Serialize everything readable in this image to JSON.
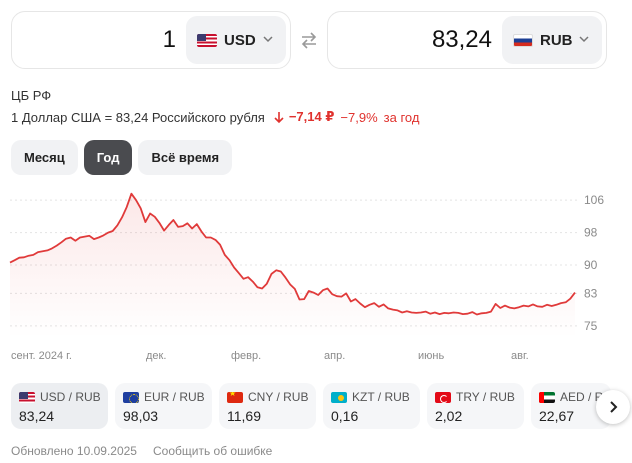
{
  "converter": {
    "from": {
      "amount": "1",
      "currency": "USD",
      "flag": "us-flag-icon"
    },
    "to": {
      "amount": "83,24",
      "currency": "RUB",
      "flag": "ru-flag-icon"
    },
    "swap_icon": "swap-arrows-icon"
  },
  "source": "ЦБ РФ",
  "rate_line": {
    "text": "1 Доллар США = 83,24 Российского рубля",
    "change_abs": "−7,14 ₽",
    "change_pct": "−7,9%",
    "change_period": "за год",
    "change_color": "#e0322e"
  },
  "period_tabs": [
    {
      "label": "Месяц",
      "active": false
    },
    {
      "label": "Год",
      "active": true
    },
    {
      "label": "Всё время",
      "active": false
    }
  ],
  "chart_data": {
    "type": "line",
    "title": "",
    "xlabel": "",
    "ylabel": "",
    "line_color": "#e03a3a",
    "x_tick_labels": [
      "сент. 2024 г.",
      "дек.",
      "февр.",
      "апр.",
      "июнь",
      "авг."
    ],
    "y_ticks": [
      "106",
      "98",
      "90",
      "83",
      "75"
    ],
    "ylim": [
      72,
      109
    ],
    "grid": true,
    "series": [
      {
        "values": [
          90.6,
          91.2,
          91.8,
          91.9,
          92.3,
          92.5,
          93.2,
          93.4,
          93.6,
          94.1,
          94.8,
          95.6,
          96.5,
          96.8,
          96.0,
          96.8,
          97.0,
          97.2,
          96.4,
          96.8,
          97.3,
          98.0,
          98.4,
          99.8,
          101.8,
          104.3,
          107.6,
          106.0,
          104.0,
          100.6,
          102.7,
          101.9,
          100.4,
          98.5,
          99.9,
          101.1,
          99.4,
          99.6,
          100.3,
          99.0,
          100.1,
          98.3,
          96.8,
          96.8,
          96.2,
          95.0,
          92.5,
          91.2,
          89.4,
          88.0,
          86.6,
          87.0,
          85.9,
          84.5,
          84.2,
          85.4,
          87.8,
          88.7,
          88.4,
          86.9,
          85.2,
          84.1,
          81.5,
          81.6,
          83.6,
          83.2,
          82.6,
          83.8,
          84.2,
          82.8,
          82.3,
          82.2,
          83.0,
          81.0,
          81.6,
          80.5,
          79.6,
          80.2,
          80.6,
          79.7,
          80.3,
          79.3,
          79.0,
          78.8,
          78.3,
          78.6,
          78.3,
          78.2,
          78.3,
          78.5,
          78.0,
          78.3,
          77.9,
          78.2,
          78.1,
          78.3,
          78.2,
          77.9,
          78.0,
          78.4,
          77.8,
          78.1,
          78.2,
          78.5,
          80.4,
          79.4,
          80.0,
          79.5,
          79.3,
          79.6,
          80.0,
          79.8,
          80.3,
          79.8,
          79.7,
          80.2,
          79.9,
          80.2,
          80.6,
          80.8,
          81.7,
          83.2
        ]
      }
    ]
  },
  "tiles": [
    {
      "pair": "USD / RUB",
      "value": "83,24",
      "flag": "us-flag-icon",
      "active": true
    },
    {
      "pair": "EUR / RUB",
      "value": "98,03",
      "flag": "eu-flag-icon",
      "active": false
    },
    {
      "pair": "CNY / RUB",
      "value": "11,69",
      "flag": "cn-flag-icon",
      "active": false
    },
    {
      "pair": "KZT / RUB",
      "value": "0,16",
      "flag": "kz-flag-icon",
      "active": false
    },
    {
      "pair": "TRY / RUB",
      "value": "2,02",
      "flag": "tr-flag-icon",
      "active": false
    },
    {
      "pair": "AED / RUB",
      "value": "22,67",
      "flag": "ae-flag-icon",
      "active": false
    }
  ],
  "next_icon": "chevron-right-icon",
  "footer": {
    "updated": "Обновлено 10.09.2025",
    "report_error": "Сообщить об ошибке"
  }
}
